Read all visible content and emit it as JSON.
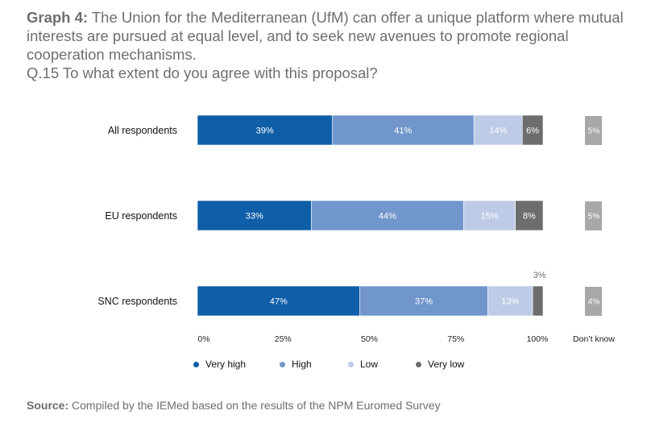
{
  "title": {
    "prefix": "Graph 4:",
    "text": " The Union for the Mediterranean (UfM) can offer a unique platform where mutual interests are pursued at equal level, and to seek new avenues to promote regional cooperation mechanisms.",
    "question": "Q.15 To what extent do you agree with this proposal?"
  },
  "chart_data": {
    "type": "bar",
    "orientation": "horizontal-stacked",
    "categories": [
      "All respondents",
      "EU respondents",
      "SNC respondents"
    ],
    "series": [
      {
        "name": "Very high",
        "color": "#0e5ea8",
        "values": [
          39,
          33,
          47
        ],
        "labels": [
          "39%",
          "33%",
          "47%"
        ]
      },
      {
        "name": "High",
        "color": "#7096cc",
        "values": [
          41,
          44,
          37
        ],
        "labels": [
          "41%",
          "44%",
          "37%"
        ]
      },
      {
        "name": "Low",
        "color": "#bdcbe6",
        "values": [
          14,
          15,
          13
        ],
        "labels": [
          "14%",
          "15%",
          "13%"
        ]
      },
      {
        "name": "Very low",
        "color": "#6d6d6d",
        "values": [
          6,
          8,
          3
        ],
        "labels": [
          "6%",
          "8%",
          "3%"
        ]
      }
    ],
    "dont_know": {
      "label": "Don’t know",
      "color": "#a8a8a8",
      "values": [
        5,
        5,
        4
      ],
      "labels": [
        "5%",
        "5%",
        "4%"
      ]
    },
    "xlim": [
      0,
      100
    ],
    "xticks": [
      "0%",
      "25%",
      "50%",
      "75%",
      "100%"
    ],
    "legend_position": "bottom",
    "grid": false
  },
  "source": {
    "prefix": "Source:",
    "text": " Compiled by the IEMed based on the results of the NPM Euromed Survey"
  }
}
